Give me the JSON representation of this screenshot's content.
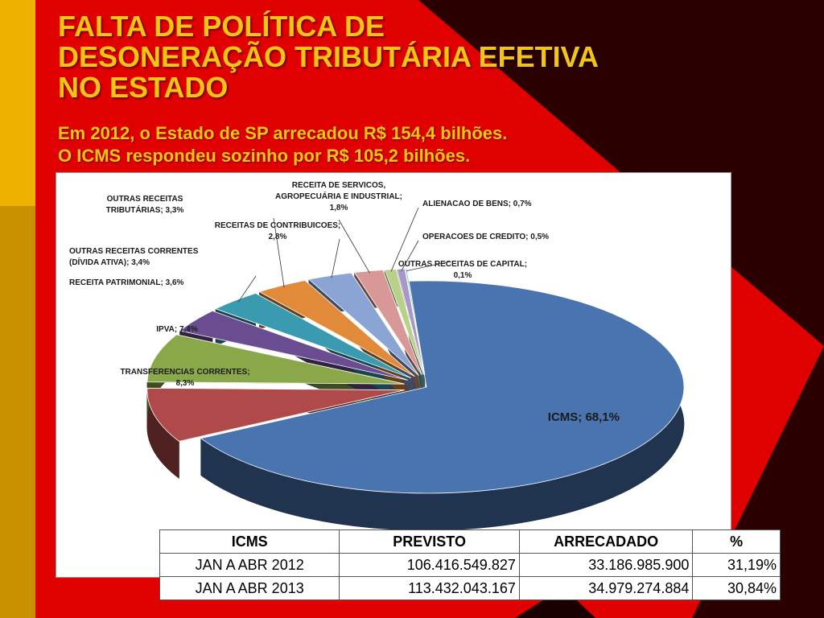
{
  "title_lines": [
    "FALTA DE POLÍTICA DE",
    "DESONERAÇÃO TRIBUTÁRIA EFETIVA",
    "NO ESTADO"
  ],
  "subtitle_lines": [
    "Em 2012, o Estado de SP arrecadou R$ 154,4 bilhões.",
    "O ICMS respondeu sozinho por R$ 105,2 bilhões."
  ],
  "colors": {
    "background": "#e00000",
    "dark": "#2a0000",
    "left_bar": "#f0b000",
    "title": "#f2c418"
  },
  "chart_data": {
    "type": "pie",
    "slices": [
      {
        "name": "ICMS",
        "value": 68.1,
        "label_lines": [
          "ICMS; 68,1%"
        ],
        "color": "#4a74b0"
      },
      {
        "name": "TRANSFERENCIAS CORRENTES",
        "value": 8.3,
        "label_lines": [
          "TRANSFERENCIAS CORRENTES;",
          "8,3%"
        ],
        "color": "#b04a4a"
      },
      {
        "name": "IPVA",
        "value": 7.4,
        "label_lines": [
          "IPVA; 7,4%"
        ],
        "color": "#8aa84a"
      },
      {
        "name": "RECEITA PATRIMONIAL",
        "value": 3.6,
        "label_lines": [
          "RECEITA PATRIMONIAL; 3,6%"
        ],
        "color": "#6a4c90"
      },
      {
        "name": "OUTRAS RECEITAS CORRENTES (DÍVIDA ATIVA)",
        "value": 3.4,
        "label_lines": [
          "OUTRAS RECEITAS CORRENTES",
          "(DÍVIDA ATIVA); 3,4%"
        ],
        "color": "#3a9ab0"
      },
      {
        "name": "OUTRAS RECEITAS TRIBUTÁRIAS",
        "value": 3.3,
        "label_lines": [
          "OUTRAS RECEITAS",
          "TRIBUTÁRIAS; 3,3%"
        ],
        "color": "#e08a3a"
      },
      {
        "name": "RECEITAS DE CONTRIBUICOES",
        "value": 2.8,
        "label_lines": [
          "RECEITAS DE CONTRIBUICOES;",
          "2,8%"
        ],
        "color": "#8aa4d4"
      },
      {
        "name": "RECEITA DE SERVICOS, AGROPECUÁRIA E INDUSTRIAL",
        "value": 1.8,
        "label_lines": [
          "RECEITA DE SERVICOS,",
          "AGROPECUÁRIA E INDUSTRIAL;",
          "1,8%"
        ],
        "color": "#d89898"
      },
      {
        "name": "ALIENACAO DE BENS",
        "value": 0.7,
        "label_lines": [
          "ALIENACAO DE BENS; 0,7%"
        ],
        "color": "#b8d088"
      },
      {
        "name": "OPERACOES DE CREDITO",
        "value": 0.5,
        "label_lines": [
          "OPERACOES DE CREDITO; 0,5%"
        ],
        "color": "#a898c8"
      },
      {
        "name": "OUTRAS RECEITAS DE CAPITAL",
        "value": 0.1,
        "label_lines": [
          "OUTRAS RECEITAS DE CAPITAL;",
          "0,1%"
        ],
        "color": "#88c8d8"
      }
    ]
  },
  "table": {
    "headers": [
      "ICMS",
      "PREVISTO",
      "ARRECADADO",
      "%"
    ],
    "rows": [
      [
        "JAN A ABR 2012",
        "106.416.549.827",
        "33.186.985.900",
        "31,19%"
      ],
      [
        "JAN A ABR 2013",
        "113.432.043.167",
        "34.979.274.884",
        "30,84%"
      ]
    ]
  }
}
